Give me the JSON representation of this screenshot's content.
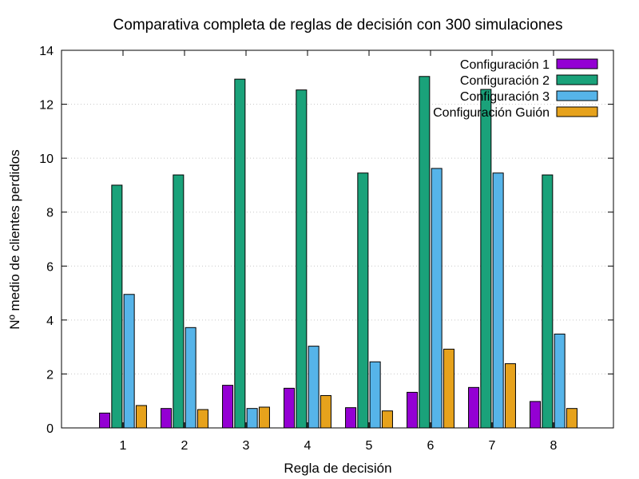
{
  "chart_data": {
    "type": "bar",
    "title": "Comparativa completa de reglas de decisión con 300 simulaciones",
    "xlabel": "Regla de decisión",
    "ylabel": "Nº medio de clientes perdidos",
    "ylim": [
      0,
      14
    ],
    "yticks": [
      0,
      2,
      4,
      6,
      8,
      10,
      12,
      14
    ],
    "grid": true,
    "legend_position": "top-right",
    "categories": [
      "1",
      "2",
      "3",
      "4",
      "5",
      "6",
      "7",
      "8"
    ],
    "series": [
      {
        "name": "Configuración 1",
        "color": "#9400d3",
        "values": [
          0.55,
          0.72,
          1.58,
          1.47,
          0.75,
          1.32,
          1.5,
          0.98
        ]
      },
      {
        "name": "Configuración 2",
        "color": "#1aa27a",
        "values": [
          9.0,
          9.38,
          12.93,
          12.53,
          9.45,
          13.03,
          12.55,
          9.38
        ]
      },
      {
        "name": "Configuración 3",
        "color": "#56b4e9",
        "values": [
          4.95,
          3.72,
          0.72,
          3.03,
          2.45,
          9.62,
          9.45,
          3.48
        ]
      },
      {
        "name": "Configuración Guión",
        "color": "#e6a21c",
        "values": [
          0.83,
          0.68,
          0.77,
          1.2,
          0.63,
          2.92,
          2.38,
          0.72
        ]
      }
    ]
  }
}
